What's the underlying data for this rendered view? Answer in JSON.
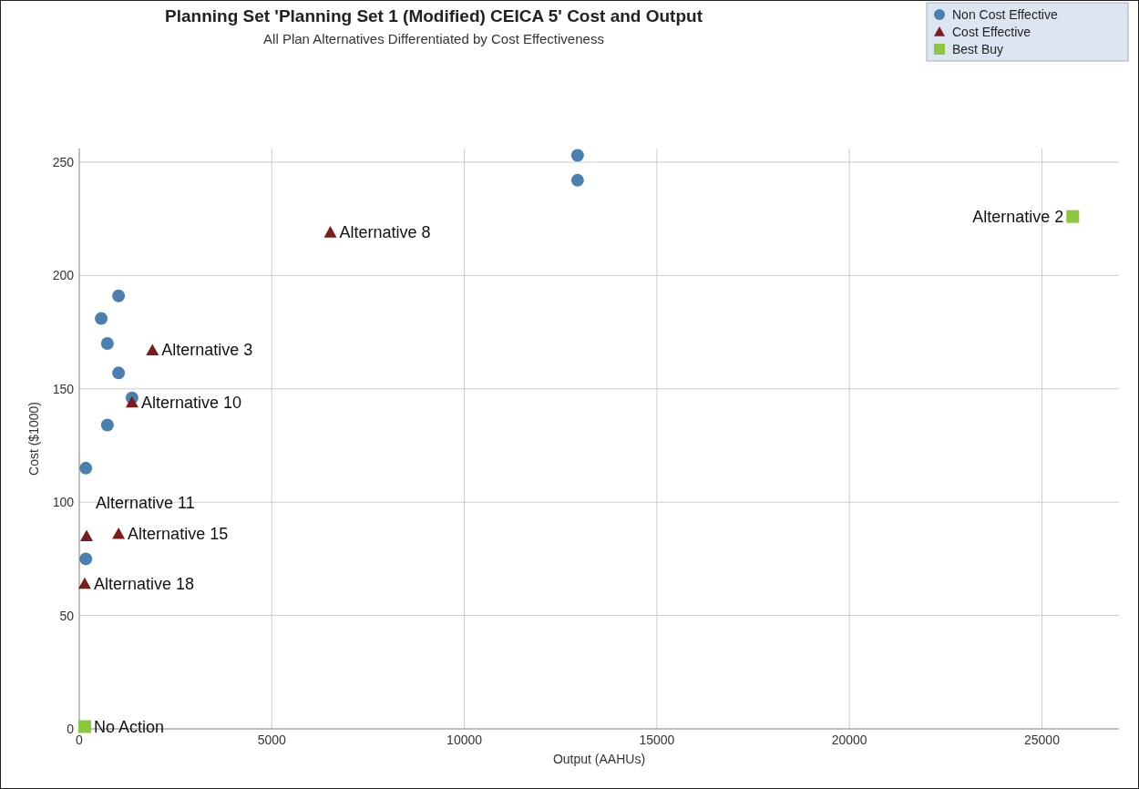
{
  "chart_data": {
    "type": "scatter",
    "title": "Planning Set 'Planning Set 1 (Modified) CEICA 5' Cost and Output",
    "subtitle": "All Plan Alternatives Differentiated by Cost Effectiveness",
    "xlabel": "Output (AAHUs)",
    "ylabel": "Cost ($1000)",
    "xlim": [
      0,
      27000
    ],
    "xticks": [
      0,
      5000,
      10000,
      15000,
      20000,
      25000
    ],
    "ylim": [
      0,
      256
    ],
    "yticks": [
      0,
      50,
      100,
      150,
      200,
      250
    ],
    "grid": true,
    "legend": "top right",
    "series": [
      {
        "name": "Non Cost Effective",
        "color": "#4a7fb0",
        "marker": "circle",
        "x": [
          12940,
          12940,
          1020,
          570,
          730,
          1020,
          1370,
          730,
          170,
          170
        ],
        "values": [
          253,
          242,
          191,
          181,
          170,
          157,
          146,
          134,
          115,
          75
        ]
      },
      {
        "name": "Cost Effective",
        "color": "#7b1b1b",
        "marker": "triangle",
        "x": [
          6520,
          1900,
          1370,
          190,
          1020,
          140
        ],
        "values": [
          219,
          167,
          144,
          85,
          86,
          64
        ]
      },
      {
        "name": "Best Buy",
        "color": "#8dc63f",
        "marker": "square",
        "x": [
          25800,
          140
        ],
        "values": [
          226,
          1
        ]
      }
    ],
    "annotations": [
      {
        "text": "Alternative 8",
        "x": 6520,
        "y": 219
      },
      {
        "text": "Alternative 3",
        "x": 1900,
        "y": 167
      },
      {
        "text": "Alternative 10",
        "x": 1370,
        "y": 144
      },
      {
        "text": "Alternative 11",
        "x": 190,
        "y": 85
      },
      {
        "text": "Alternative 15",
        "x": 1020,
        "y": 86
      },
      {
        "text": "Alternative 18",
        "x": 140,
        "y": 64
      },
      {
        "text": "Alternative 2",
        "x": 25800,
        "y": 226
      },
      {
        "text": "No Action",
        "x": 140,
        "y": 1
      }
    ]
  }
}
